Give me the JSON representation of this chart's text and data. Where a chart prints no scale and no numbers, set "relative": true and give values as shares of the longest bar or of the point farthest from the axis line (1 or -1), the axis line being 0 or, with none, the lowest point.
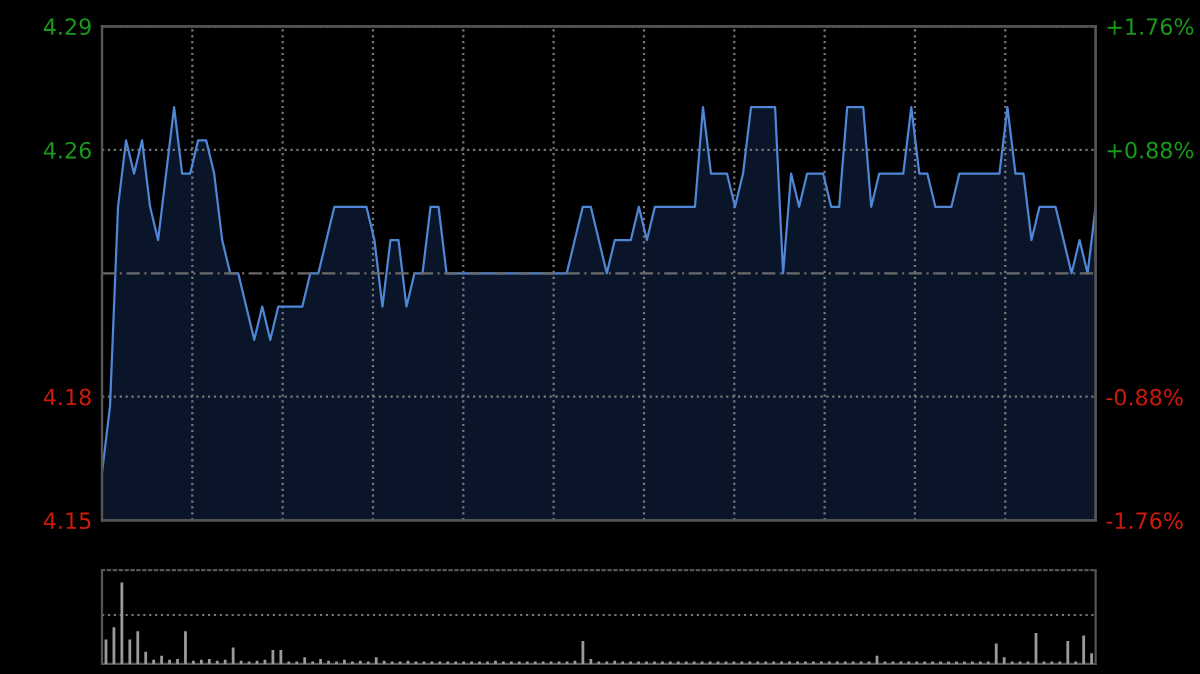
{
  "chart_data": [
    {
      "type": "area",
      "categories": [
        null,
        null,
        null,
        null,
        null,
        null,
        null,
        null,
        null,
        null,
        null,
        null,
        null,
        null,
        null,
        null,
        null,
        null,
        null,
        null,
        null,
        null,
        null,
        null,
        null,
        null,
        null,
        null,
        null,
        null,
        null,
        null,
        null,
        null,
        null,
        null,
        null,
        null,
        null,
        null,
        null,
        null,
        null,
        null,
        null,
        null,
        null,
        null,
        null,
        null,
        null,
        null,
        null,
        null,
        null,
        null,
        null,
        null,
        null,
        null,
        null,
        null,
        null,
        null,
        null,
        null,
        null,
        null,
        null,
        null,
        null,
        null,
        null,
        null,
        null,
        null,
        null,
        null,
        null,
        null,
        null,
        null,
        null,
        null,
        null,
        null,
        null,
        null,
        null,
        null,
        null,
        null,
        null,
        null,
        null,
        null,
        null,
        null,
        null,
        null,
        null,
        null,
        null,
        null,
        null,
        null,
        null,
        null,
        null,
        null,
        null,
        null,
        null,
        null,
        null,
        null,
        null,
        null,
        null,
        null,
        null,
        null,
        null,
        null,
        null
      ],
      "series": [
        {
          "color": "#4f86d6",
          "values": [
            4.16,
            4.18,
            4.24,
            4.26,
            4.25,
            4.26,
            4.24,
            4.23,
            4.25,
            4.27,
            4.25,
            4.25,
            4.26,
            4.26,
            4.25,
            4.23,
            4.22,
            4.22,
            4.21,
            4.2,
            4.21,
            4.2,
            4.21,
            4.21,
            4.21,
            4.21,
            4.22,
            4.22,
            4.23,
            4.24,
            4.24,
            4.24,
            4.24,
            4.24,
            4.23,
            4.21,
            4.23,
            4.23,
            4.21,
            4.22,
            4.22,
            4.24,
            4.24,
            4.22,
            4.22,
            4.22,
            4.22,
            4.22,
            4.22,
            4.22,
            4.22,
            4.22,
            4.22,
            4.22,
            4.22,
            4.22,
            4.22,
            4.22,
            4.22,
            4.23,
            4.24,
            4.24,
            4.23,
            4.22,
            4.23,
            4.23,
            4.23,
            4.24,
            4.23,
            4.24,
            4.24,
            4.24,
            4.24,
            4.24,
            4.24,
            4.27,
            4.25,
            4.25,
            4.25,
            4.24,
            4.25,
            4.27,
            4.27,
            4.27,
            4.27,
            4.22,
            4.25,
            4.24,
            4.25,
            4.25,
            4.25,
            4.24,
            4.24,
            4.27,
            4.27,
            4.27,
            4.24,
            4.25,
            4.25,
            4.25,
            4.25,
            4.27,
            4.25,
            4.25,
            4.24,
            4.24,
            4.24,
            4.25,
            4.25,
            4.25,
            4.25,
            4.25,
            4.25,
            4.27,
            4.25,
            4.25,
            4.23,
            4.24,
            4.24,
            4.24,
            4.23,
            4.22,
            4.23,
            4.22,
            4.24
          ]
        }
      ],
      "ylim": [
        4.1457,
        4.2943
      ],
      "yticks": [
        {
          "value": 4.2943,
          "label": "4.29"
        },
        {
          "value": 4.2571,
          "label": "4.26"
        },
        {
          "value": 4.1829,
          "label": "4.18"
        },
        {
          "value": 4.1457,
          "label": "4.15"
        }
      ],
      "y2lim": [
        -1.76,
        1.76
      ],
      "y2ticks": [
        {
          "value": 1.76,
          "label": "+1.76%"
        },
        {
          "value": 0.88,
          "label": "+0.88%"
        },
        {
          "value": -0.88,
          "label": "-0.88%"
        },
        {
          "value": -1.76,
          "label": "-1.76%"
        }
      ],
      "ref_lines": [
        {
          "axis": "y",
          "value": 4.22,
          "color": "#6a6a6a",
          "line_style": "dashed"
        }
      ],
      "grid": true,
      "tick_labels": "y"
    },
    {
      "type": "bar",
      "relative": true,
      "categories": [
        null,
        null,
        null,
        null,
        null,
        null,
        null,
        null,
        null,
        null,
        null,
        null,
        null,
        null,
        null,
        null,
        null,
        null,
        null,
        null,
        null,
        null,
        null,
        null,
        null,
        null,
        null,
        null,
        null,
        null,
        null,
        null,
        null,
        null,
        null,
        null,
        null,
        null,
        null,
        null,
        null,
        null,
        null,
        null,
        null,
        null,
        null,
        null,
        null,
        null,
        null,
        null,
        null,
        null,
        null,
        null,
        null,
        null,
        null,
        null,
        null,
        null,
        null,
        null,
        null,
        null,
        null,
        null,
        null,
        null,
        null,
        null,
        null,
        null,
        null,
        null,
        null,
        null,
        null,
        null,
        null,
        null,
        null,
        null,
        null,
        null,
        null,
        null,
        null,
        null,
        null,
        null,
        null,
        null,
        null,
        null,
        null,
        null,
        null,
        null,
        null,
        null,
        null,
        null,
        null,
        null,
        null,
        null,
        null,
        null,
        null,
        null,
        null,
        null,
        null,
        null,
        null,
        null,
        null,
        null,
        null,
        null,
        null,
        null,
        null
      ],
      "color": "#9a9a9a",
      "ref_lines": [
        {
          "axis": "y",
          "value": 0.6,
          "color": "#777777",
          "line_style": "dotted"
        }
      ],
      "values": [
        0.3,
        0.45,
        1.0,
        0.3,
        0.4,
        0.15,
        0.05,
        0.1,
        0.05,
        0.06,
        0.4,
        0.04,
        0.05,
        0.06,
        0.04,
        0.05,
        0.2,
        0.04,
        0.03,
        0.04,
        0.05,
        0.17,
        0.17,
        0.03,
        0.03,
        0.08,
        0.03,
        0.06,
        0.04,
        0.03,
        0.05,
        0.03,
        0.04,
        0.03,
        0.08,
        0.04,
        0.03,
        0.03,
        0.04,
        0.03,
        0.03,
        0.03,
        0.03,
        0.03,
        0.03,
        0.03,
        0.03,
        0.03,
        0.03,
        0.04,
        0.03,
        0.03,
        0.03,
        0.03,
        0.03,
        0.03,
        0.03,
        0.03,
        0.03,
        0.04,
        0.28,
        0.06,
        0.03,
        0.03,
        0.04,
        0.03,
        0.03,
        0.03,
        0.03,
        0.03,
        0.03,
        0.03,
        0.03,
        0.03,
        0.03,
        0.03,
        0.03,
        0.03,
        0.03,
        0.03,
        0.03,
        0.03,
        0.03,
        0.03,
        0.03,
        0.03,
        0.03,
        0.03,
        0.03,
        0.03,
        0.03,
        0.03,
        0.03,
        0.03,
        0.03,
        0.03,
        0.03,
        0.1,
        0.03,
        0.03,
        0.03,
        0.03,
        0.03,
        0.03,
        0.03,
        0.03,
        0.03,
        0.03,
        0.03,
        0.03,
        0.03,
        0.03,
        0.25,
        0.08,
        0.03,
        0.03,
        0.03,
        0.38,
        0.03,
        0.03,
        0.03,
        0.28,
        0.03,
        0.35,
        0.13
      ]
    }
  ]
}
